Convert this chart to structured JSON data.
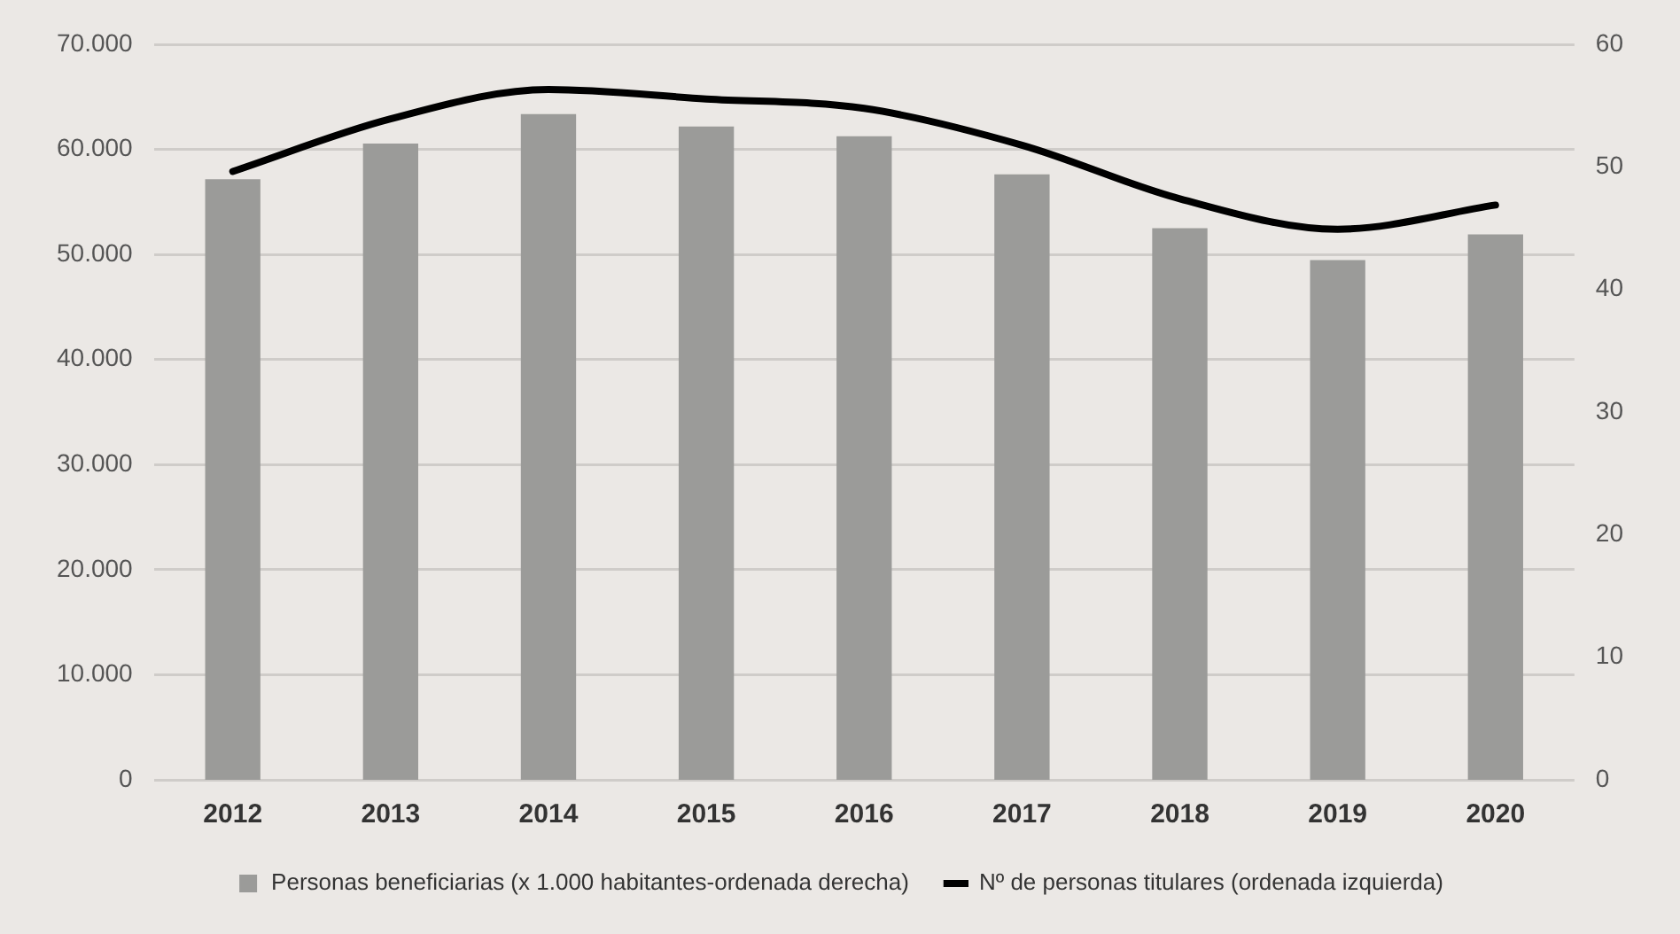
{
  "chart_data": {
    "type": "bar",
    "categories": [
      "2012",
      "2013",
      "2014",
      "2015",
      "2016",
      "2017",
      "2018",
      "2019",
      "2020"
    ],
    "series": [
      {
        "name": "Personas beneficiarias (x 1.000 habitantes-ordenada derecha)",
        "axis": "y2",
        "color": "#9b9b99",
        "values": [
          49.0,
          51.9,
          54.3,
          53.3,
          52.5,
          49.4,
          45.0,
          42.4,
          44.5
        ]
      },
      {
        "name": "Nº de personas titulares (ordenada izquierda)",
        "type": "line",
        "axis": "y",
        "color": "#000000",
        "values": [
          57900,
          62900,
          65700,
          64800,
          63900,
          60400,
          55300,
          52400,
          54700
        ]
      }
    ],
    "ylim": [
      0,
      70000
    ],
    "yticks": [
      0,
      {
        "value": 10000,
        "label": "10.000"
      },
      {
        "value": 20000,
        "label": "20.000"
      },
      {
        "value": 30000,
        "label": "30.000"
      },
      {
        "value": 40000,
        "label": "40.000"
      },
      {
        "value": 50000,
        "label": "50.000"
      },
      {
        "value": 60000,
        "label": "60.000"
      },
      {
        "value": 70000,
        "label": "70.000"
      }
    ],
    "y2lim": [
      0,
      60
    ],
    "y2ticks": [
      0,
      10,
      20,
      30,
      40,
      50,
      60
    ],
    "grid": "y",
    "legend": "bottom",
    "marker": "none",
    "line_style": "solid"
  }
}
